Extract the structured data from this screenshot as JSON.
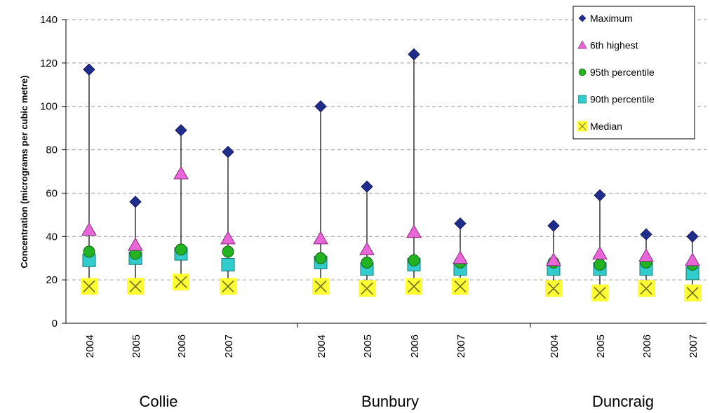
{
  "chart_data": {
    "type": "scatter",
    "ylabel": "Concentration (micrograms per cubic metre)",
    "xlabel": "",
    "ylim": [
      0,
      140
    ],
    "yticks": [
      "0",
      "20",
      "40",
      "60",
      "80",
      "100",
      "120",
      "140"
    ],
    "grid": true,
    "legend_position": "top-right",
    "groups": [
      "Collie",
      "Bunbury",
      "Duncraig"
    ],
    "categories": [
      {
        "group": "Collie",
        "year": "2004"
      },
      {
        "group": "Collie",
        "year": "2005"
      },
      {
        "group": "Collie",
        "year": "2006"
      },
      {
        "group": "Collie",
        "year": "2007"
      },
      {
        "group": "Bunbury",
        "year": "2004"
      },
      {
        "group": "Bunbury",
        "year": "2005"
      },
      {
        "group": "Bunbury",
        "year": "2006"
      },
      {
        "group": "Bunbury",
        "year": "2007"
      },
      {
        "group": "Duncraig",
        "year": "2004"
      },
      {
        "group": "Duncraig",
        "year": "2005"
      },
      {
        "group": "Duncraig",
        "year": "2006"
      },
      {
        "group": "Duncraig",
        "year": "2007"
      }
    ],
    "series": [
      {
        "name": "Maximum",
        "marker": "diamond",
        "color": "#1F2D8C",
        "values": [
          117,
          56,
          89,
          79,
          100,
          63,
          124,
          46,
          45,
          59,
          41,
          40
        ]
      },
      {
        "name": "6th highest",
        "marker": "triangle",
        "color": "#E866D8",
        "values": [
          43,
          36,
          69,
          39,
          39,
          34,
          42,
          30,
          29,
          32,
          31,
          29
        ]
      },
      {
        "name": "95th percentile",
        "marker": "circle",
        "color": "#22B222",
        "values": [
          33,
          32,
          34,
          33,
          30,
          28,
          29,
          28,
          28,
          27,
          28,
          27
        ]
      },
      {
        "name": "90th percentile",
        "marker": "square",
        "color": "#33CCCC",
        "values": [
          29,
          30,
          32,
          27,
          28,
          25,
          27,
          25,
          25,
          25,
          25,
          23
        ]
      },
      {
        "name": "Median",
        "marker": "x-square",
        "color": "#FFFF33",
        "values": [
          17,
          17,
          19,
          17,
          17,
          16,
          17,
          17,
          16,
          14,
          16,
          14
        ]
      }
    ]
  }
}
